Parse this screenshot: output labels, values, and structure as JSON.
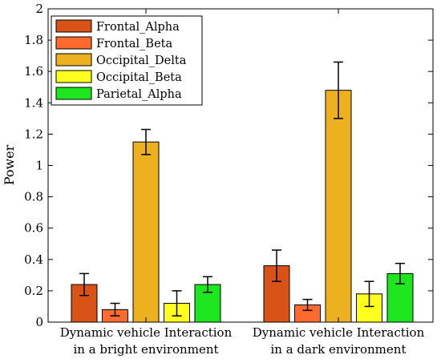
{
  "chart_data": {
    "type": "bar",
    "title": "",
    "xlabel": "",
    "ylabel": "Power",
    "ylim": [
      0,
      2
    ],
    "yticks": [
      "0",
      "0.2",
      "0.4",
      "0.6",
      "0.8",
      "1",
      "1.2",
      "1.4",
      "1.6",
      "1.8",
      "2"
    ],
    "grid": false,
    "legend_position": "top-left",
    "categories": [
      [
        "Dynamic vehicle Interaction",
        "in a bright environment"
      ],
      [
        "Dynamic vehicle Interaction",
        "in a dark environment"
      ]
    ],
    "series": [
      {
        "name": "Frontal_Alpha",
        "color": "#d95319",
        "values": [
          0.24,
          0.36
        ],
        "errors": [
          0.07,
          0.1
        ]
      },
      {
        "name": "Frontal_Beta",
        "color": "#ff6a2f",
        "values": [
          0.08,
          0.11
        ],
        "errors": [
          0.04,
          0.035
        ]
      },
      {
        "name": "Occipital_Delta",
        "color": "#edb120",
        "values": [
          1.15,
          1.48
        ],
        "errors": [
          0.08,
          0.18
        ]
      },
      {
        "name": "Occipital_Beta",
        "color": "#ffff1e",
        "values": [
          0.12,
          0.18
        ],
        "errors": [
          0.08,
          0.08
        ]
      },
      {
        "name": "Parietal_Alpha",
        "color": "#1ee61e",
        "values": [
          0.24,
          0.31
        ],
        "errors": [
          0.05,
          0.065
        ]
      }
    ]
  }
}
